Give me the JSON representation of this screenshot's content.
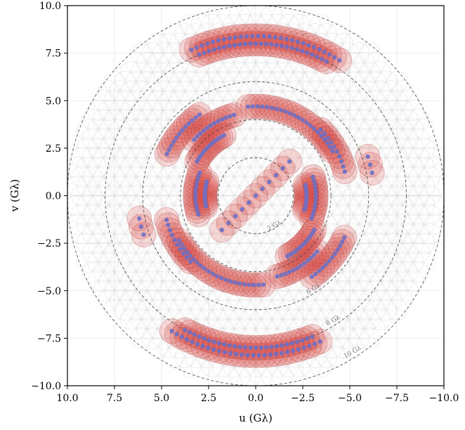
{
  "chart_data": {
    "type": "scatter",
    "xlabel": "u (Gλ)",
    "ylabel": "v (Gλ)",
    "xlim": [
      10.0,
      -10.0
    ],
    "ylim": [
      -10.0,
      10.0
    ],
    "x_ticks": [
      10.0,
      7.5,
      5.0,
      2.5,
      0.0,
      -2.5,
      -5.0,
      -7.5,
      -10.0
    ],
    "y_ticks": [
      10.0,
      7.5,
      5.0,
      2.5,
      0.0,
      -2.5,
      -5.0,
      -7.5,
      -10.0
    ],
    "x_tick_labels": [
      "10.0",
      "7.5",
      "5.0",
      "2.5",
      "0.0",
      "−2.5",
      "−5.0",
      "−7.5",
      "−10.0"
    ],
    "y_tick_labels": [
      "10.0",
      "7.5",
      "5.0",
      "2.5",
      "0.0",
      "−2.5",
      "−5.0",
      "−7.5",
      "−10.0"
    ],
    "grid": true,
    "background_grid": {
      "shape": "hexagonal circle packing",
      "max_radius": 10.0,
      "circle_radius": 0.55,
      "color": "#d9d9d9"
    },
    "rings": [
      {
        "radius": 2,
        "label": "2 Gλ"
      },
      {
        "radius": 4,
        "label": "4 Gλ"
      },
      {
        "radius": 6,
        "label": "6 Gλ"
      },
      {
        "radius": 8,
        "label": "8 Gλ"
      },
      {
        "radius": 10,
        "label": "10 Gλ"
      }
    ],
    "coverage_circle_radius": 0.65,
    "arcs": [
      {
        "r": 8.4,
        "a0": 66,
        "a1": 122,
        "n": 28,
        "dir": "cw"
      },
      {
        "r": 8.0,
        "a0": 68,
        "a1": 118,
        "n": 26,
        "dir": "cw"
      },
      {
        "r": 4.9,
        "a0": 135,
        "a1": 165,
        "n": 10,
        "dir": "cw"
      },
      {
        "r": 4.7,
        "a0": 85,
        "a1": 150,
        "n": 22,
        "dir": "cw"
      },
      {
        "r": 5.2,
        "a0": 25,
        "a1": 55,
        "n": 12,
        "dir": "cw"
      },
      {
        "r": 4.4,
        "a0": 42,
        "a1": 75,
        "n": 12,
        "dir": "cw"
      },
      {
        "r": 3.6,
        "a0": 30,
        "a1": 62,
        "n": 12,
        "dir": "cw"
      },
      {
        "r": 3.2,
        "a0": 162,
        "a1": 202,
        "n": 12,
        "dir": "cw"
      },
      {
        "r": 2.7,
        "a0": 168,
        "a1": 196,
        "n": 10,
        "dir": "cw"
      },
      {
        "r": 6.3,
        "a0": 161,
        "a1": 169,
        "n": 3,
        "dir": "cw"
      },
      {
        "r": 8.4,
        "a0": 246,
        "a1": 302,
        "n": 28,
        "dir": "cw"
      },
      {
        "r": 8.0,
        "a0": 248,
        "a1": 298,
        "n": 26,
        "dir": "cw"
      },
      {
        "r": 4.9,
        "a0": 315,
        "a1": 345,
        "n": 10,
        "dir": "cw"
      },
      {
        "r": 4.7,
        "a0": 265,
        "a1": 330,
        "n": 22,
        "dir": "cw"
      },
      {
        "r": 5.2,
        "a0": 205,
        "a1": 235,
        "n": 12,
        "dir": "cw"
      },
      {
        "r": 4.4,
        "a0": 222,
        "a1": 255,
        "n": 12,
        "dir": "cw"
      },
      {
        "r": 3.6,
        "a0": 210,
        "a1": 242,
        "n": 12,
        "dir": "cw"
      },
      {
        "r": 3.2,
        "a0": 342,
        "a1": 382,
        "n": 12,
        "dir": "cw"
      },
      {
        "r": 2.7,
        "a0": 348,
        "a1": 376,
        "n": 10,
        "dir": "cw"
      },
      {
        "r": 6.3,
        "a0": 341,
        "a1": 349,
        "n": 3,
        "dir": "cw"
      }
    ],
    "lines": [
      {
        "from": [
          -1.8,
          1.8
        ],
        "to": [
          1.8,
          -1.8
        ],
        "n": 11
      }
    ],
    "colors": {
      "coverage_fill": "#d9534f",
      "coverage_stroke": "#b03030",
      "points": "#6d6fc4",
      "rings": "#444444",
      "grid": "#e6e6e6",
      "background_circles": "#d6d6d6"
    }
  }
}
